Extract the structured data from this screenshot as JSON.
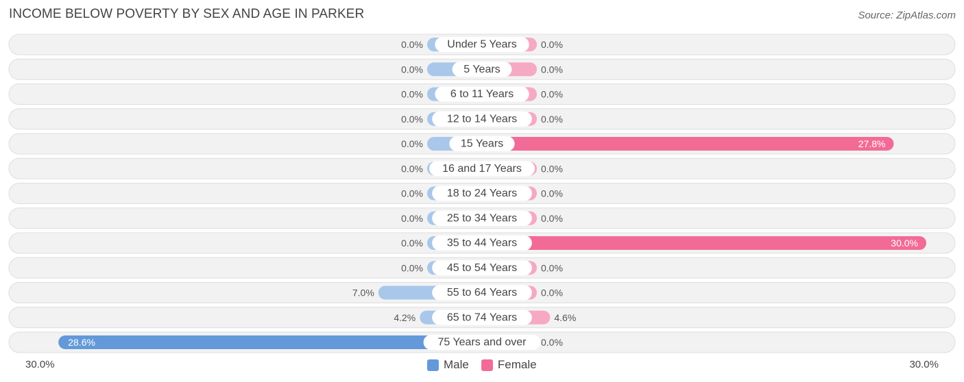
{
  "header": {
    "title": "INCOME BELOW POVERTY BY SEX AND AGE IN PARKER",
    "source": "Source: ZipAtlas.com"
  },
  "axis": {
    "left_label": "30.0%",
    "right_label": "30.0%"
  },
  "legend": {
    "male_label": "Male",
    "female_label": "Female"
  },
  "colors": {
    "male_light": "#a9c7ea",
    "male_strong": "#6399d8",
    "female_light": "#f6a9c2",
    "female_strong": "#f26b96",
    "row_bg": "#f2f2f2",
    "row_border": "#dddddd"
  },
  "chart_data": {
    "type": "bar",
    "orientation": "horizontal-diverging",
    "xlim": [
      -30,
      30
    ],
    "categories": [
      "Under 5 Years",
      "5 Years",
      "6 to 11 Years",
      "12 to 14 Years",
      "15 Years",
      "16 and 17 Years",
      "18 to 24 Years",
      "25 to 34 Years",
      "35 to 44 Years",
      "45 to 54 Years",
      "55 to 64 Years",
      "65 to 74 Years",
      "75 Years and over"
    ],
    "series": [
      {
        "name": "Male",
        "values": [
          0.0,
          0.0,
          0.0,
          0.0,
          0.0,
          0.0,
          0.0,
          0.0,
          0.0,
          0.0,
          7.0,
          4.2,
          28.6
        ],
        "labels": [
          "0.0%",
          "0.0%",
          "0.0%",
          "0.0%",
          "0.0%",
          "0.0%",
          "0.0%",
          "0.0%",
          "0.0%",
          "0.0%",
          "7.0%",
          "4.2%",
          "28.6%"
        ]
      },
      {
        "name": "Female",
        "values": [
          0.0,
          0.0,
          0.0,
          0.0,
          27.8,
          0.0,
          0.0,
          0.0,
          30.0,
          0.0,
          0.0,
          4.6,
          0.0
        ],
        "labels": [
          "0.0%",
          "0.0%",
          "0.0%",
          "0.0%",
          "27.8%",
          "0.0%",
          "0.0%",
          "0.0%",
          "30.0%",
          "0.0%",
          "0.0%",
          "4.6%",
          "0.0%"
        ]
      }
    ]
  }
}
